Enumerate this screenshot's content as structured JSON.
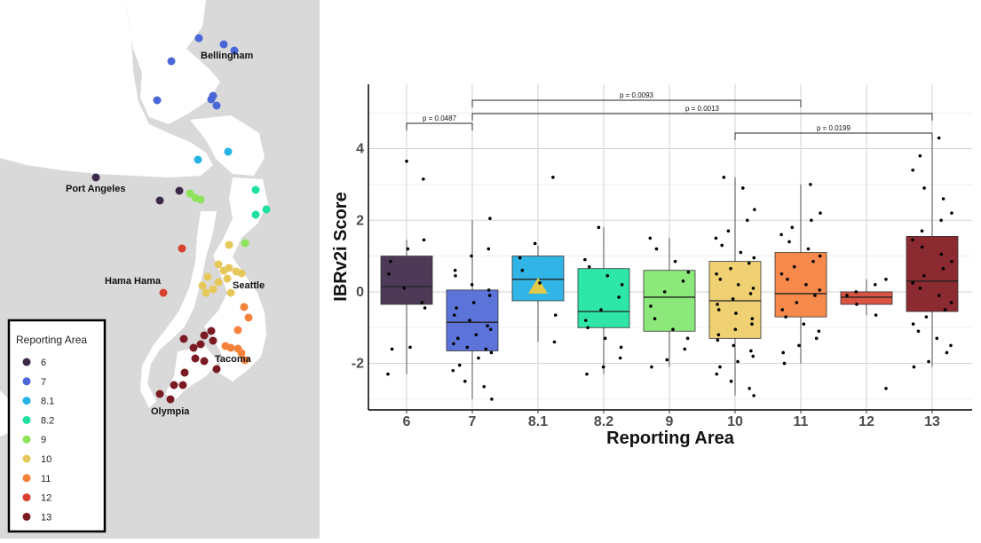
{
  "map": {
    "cities": [
      {
        "id": "bellingham",
        "label": "Bellingham"
      },
      {
        "id": "port-angeles",
        "label": "Port Angeles"
      },
      {
        "id": "hama-hama",
        "label": "Hama Hama"
      },
      {
        "id": "seattle",
        "label": "Seattle"
      },
      {
        "id": "tacoma",
        "label": "Tacoma"
      },
      {
        "id": "olympia",
        "label": "Olympia"
      }
    ],
    "legend": {
      "title": "Reporting Area",
      "items": [
        {
          "label": "6",
          "color": "#3b2a4a"
        },
        {
          "label": "7",
          "color": "#4a66d8"
        },
        {
          "label": "8.1",
          "color": "#25b3e6"
        },
        {
          "label": "8.2",
          "color": "#1fe0a0"
        },
        {
          "label": "9",
          "color": "#8de35a"
        },
        {
          "label": "10",
          "color": "#e6c85a"
        },
        {
          "label": "11",
          "color": "#f5823a"
        },
        {
          "label": "12",
          "color": "#d9412f"
        },
        {
          "label": "13",
          "color": "#7a1a22"
        }
      ]
    }
  },
  "chart_data": {
    "type": "boxplot",
    "xlabel": "Reporting Area",
    "ylabel": "IBRv2i Score",
    "ylim": [
      -3.3,
      5.8
    ],
    "yticks": [
      -2,
      0,
      2,
      4
    ],
    "categories": [
      "6",
      "7",
      "8.1",
      "8.2",
      "9",
      "10",
      "11",
      "12",
      "13"
    ],
    "colors": [
      "#4e3a57",
      "#5c73d9",
      "#30b5e6",
      "#2de6a8",
      "#8ce87a",
      "#efd072",
      "#f68a4c",
      "#d95443",
      "#8b2a30"
    ],
    "boxes": [
      {
        "q1": -0.35,
        "median": 0.15,
        "q3": 1.0,
        "whisker_low": -2.3,
        "whisker_high": 1.45
      },
      {
        "q1": -1.65,
        "median": -0.85,
        "q3": 0.05,
        "whisker_low": -3.0,
        "whisker_high": 2.0
      },
      {
        "q1": -0.25,
        "median": 0.35,
        "q3": 1.0,
        "whisker_low": -1.4,
        "whisker_high": 1.3
      },
      {
        "q1": -1.0,
        "median": -0.55,
        "q3": 0.65,
        "whisker_low": -2.3,
        "whisker_high": 1.8
      },
      {
        "q1": -1.1,
        "median": -0.15,
        "q3": 0.6,
        "whisker_low": -2.1,
        "whisker_high": 1.5
      },
      {
        "q1": -1.3,
        "median": -0.25,
        "q3": 0.85,
        "whisker_low": -2.9,
        "whisker_high": 3.2
      },
      {
        "q1": -0.7,
        "median": -0.05,
        "q3": 1.1,
        "whisker_low": -2.0,
        "whisker_high": 3.0
      },
      {
        "q1": -0.35,
        "median": -0.15,
        "q3": 0.0,
        "whisker_low": -0.65,
        "whisker_high": 0.35
      },
      {
        "q1": -0.55,
        "median": 0.3,
        "q3": 1.55,
        "whisker_low": -2.1,
        "whisker_high": 4.3
      }
    ],
    "points": [
      [
        3.65,
        3.15,
        1.45,
        1.2,
        0.85,
        0.5,
        0.1,
        -0.3,
        -0.45,
        -1.55,
        -1.6,
        -2.3
      ],
      [
        2.05,
        1.2,
        1.0,
        0.6,
        0.45,
        0.2,
        0.05,
        -0.1,
        -0.3,
        -0.45,
        -0.65,
        -0.8,
        -0.95,
        -1.05,
        -1.2,
        -1.3,
        -1.45,
        -1.55,
        -1.6,
        -1.7,
        -1.85,
        -2.05,
        -2.2,
        -2.5,
        -2.65,
        -3.0
      ],
      [
        3.2,
        1.35,
        0.95,
        0.6,
        0.25,
        -0.65,
        -1.4
      ],
      [
        1.8,
        0.9,
        0.7,
        0.45,
        0.2,
        -0.15,
        -0.5,
        -0.8,
        -1.0,
        -1.3,
        -1.55,
        -1.85,
        -2.1,
        -2.3
      ],
      [
        1.5,
        1.2,
        0.85,
        0.55,
        0.3,
        0.0,
        -0.4,
        -0.75,
        -1.05,
        -1.3,
        -1.6,
        -1.9,
        -2.1
      ],
      [
        3.2,
        2.9,
        2.3,
        2.0,
        1.7,
        1.5,
        1.3,
        1.1,
        0.95,
        0.8,
        0.65,
        0.5,
        0.35,
        0.2,
        0.1,
        -0.05,
        -0.2,
        -0.35,
        -0.5,
        -0.6,
        -0.75,
        -0.9,
        -1.05,
        -1.2,
        -1.35,
        -1.5,
        -1.65,
        -1.8,
        -1.95,
        -2.1,
        -2.3,
        -2.5,
        -2.7,
        -2.9
      ],
      [
        3.0,
        2.2,
        2.0,
        1.8,
        1.6,
        1.4,
        1.2,
        1.0,
        0.85,
        0.7,
        0.5,
        0.35,
        0.2,
        0.05,
        -0.1,
        -0.3,
        -0.5,
        -0.7,
        -0.9,
        -1.1,
        -1.3,
        -1.5,
        -1.7,
        -2.0
      ],
      [
        0.35,
        0.2,
        0.0,
        -0.1,
        -0.35,
        -0.65,
        -2.7
      ],
      [
        4.3,
        3.8,
        3.4,
        2.9,
        2.6,
        2.2,
        2.0,
        1.7,
        1.45,
        1.25,
        1.05,
        0.85,
        0.65,
        0.45,
        0.25,
        0.1,
        -0.1,
        -0.3,
        -0.5,
        -0.7,
        -0.9,
        -1.1,
        -1.3,
        -1.5,
        -1.7,
        -1.95,
        -2.1
      ]
    ],
    "mean_marker": {
      "category": "8.1",
      "value": 0.15,
      "color": "#e2c94a",
      "shape": "triangle"
    },
    "comparisons": [
      {
        "from": "6",
        "to": "7",
        "label": "p = 0.0487",
        "level": 1
      },
      {
        "from": "7",
        "to": "11",
        "label": "p = 0.0093",
        "level": 3
      },
      {
        "from": "7",
        "to": "13",
        "label": "p = 0.0013",
        "level": 2
      },
      {
        "from": "10",
        "to": "13",
        "label": "p = 0.0199",
        "level": 1
      }
    ]
  }
}
